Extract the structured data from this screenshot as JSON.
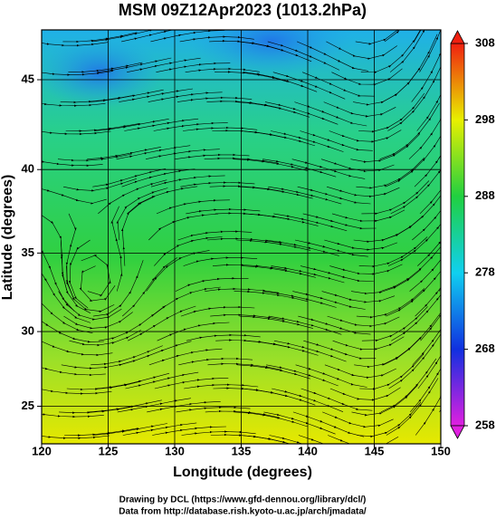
{
  "chart_data": {
    "type": "map",
    "title": "MSM 09Z12Apr2023 (1013.2hPa)",
    "xlabel": "Longitude (degrees)",
    "ylabel": "Latitude  (degrees)",
    "projection": "mercator",
    "xlim": [
      120,
      150
    ],
    "ylim": [
      22.4,
      47.6
    ],
    "xticks": [
      120,
      125,
      130,
      135,
      140,
      145,
      150
    ],
    "yticks": [
      25,
      30,
      35,
      40,
      45
    ],
    "grid": true,
    "colorbar": {
      "lim": [
        258,
        308
      ],
      "ticks": [
        258,
        268,
        278,
        288,
        298,
        308
      ],
      "colors": [
        "#e020e0",
        "#1030e0",
        "#10d0f0",
        "#20d040",
        "#e8f000",
        "#f02010"
      ]
    }
  },
  "footer": [
    "Drawing by DCL (https://www.gfd-dennou.org/library/dcl/)",
    "Data from http://database.rish.kyoto-u.ac.jp/arch/jmadata/"
  ]
}
